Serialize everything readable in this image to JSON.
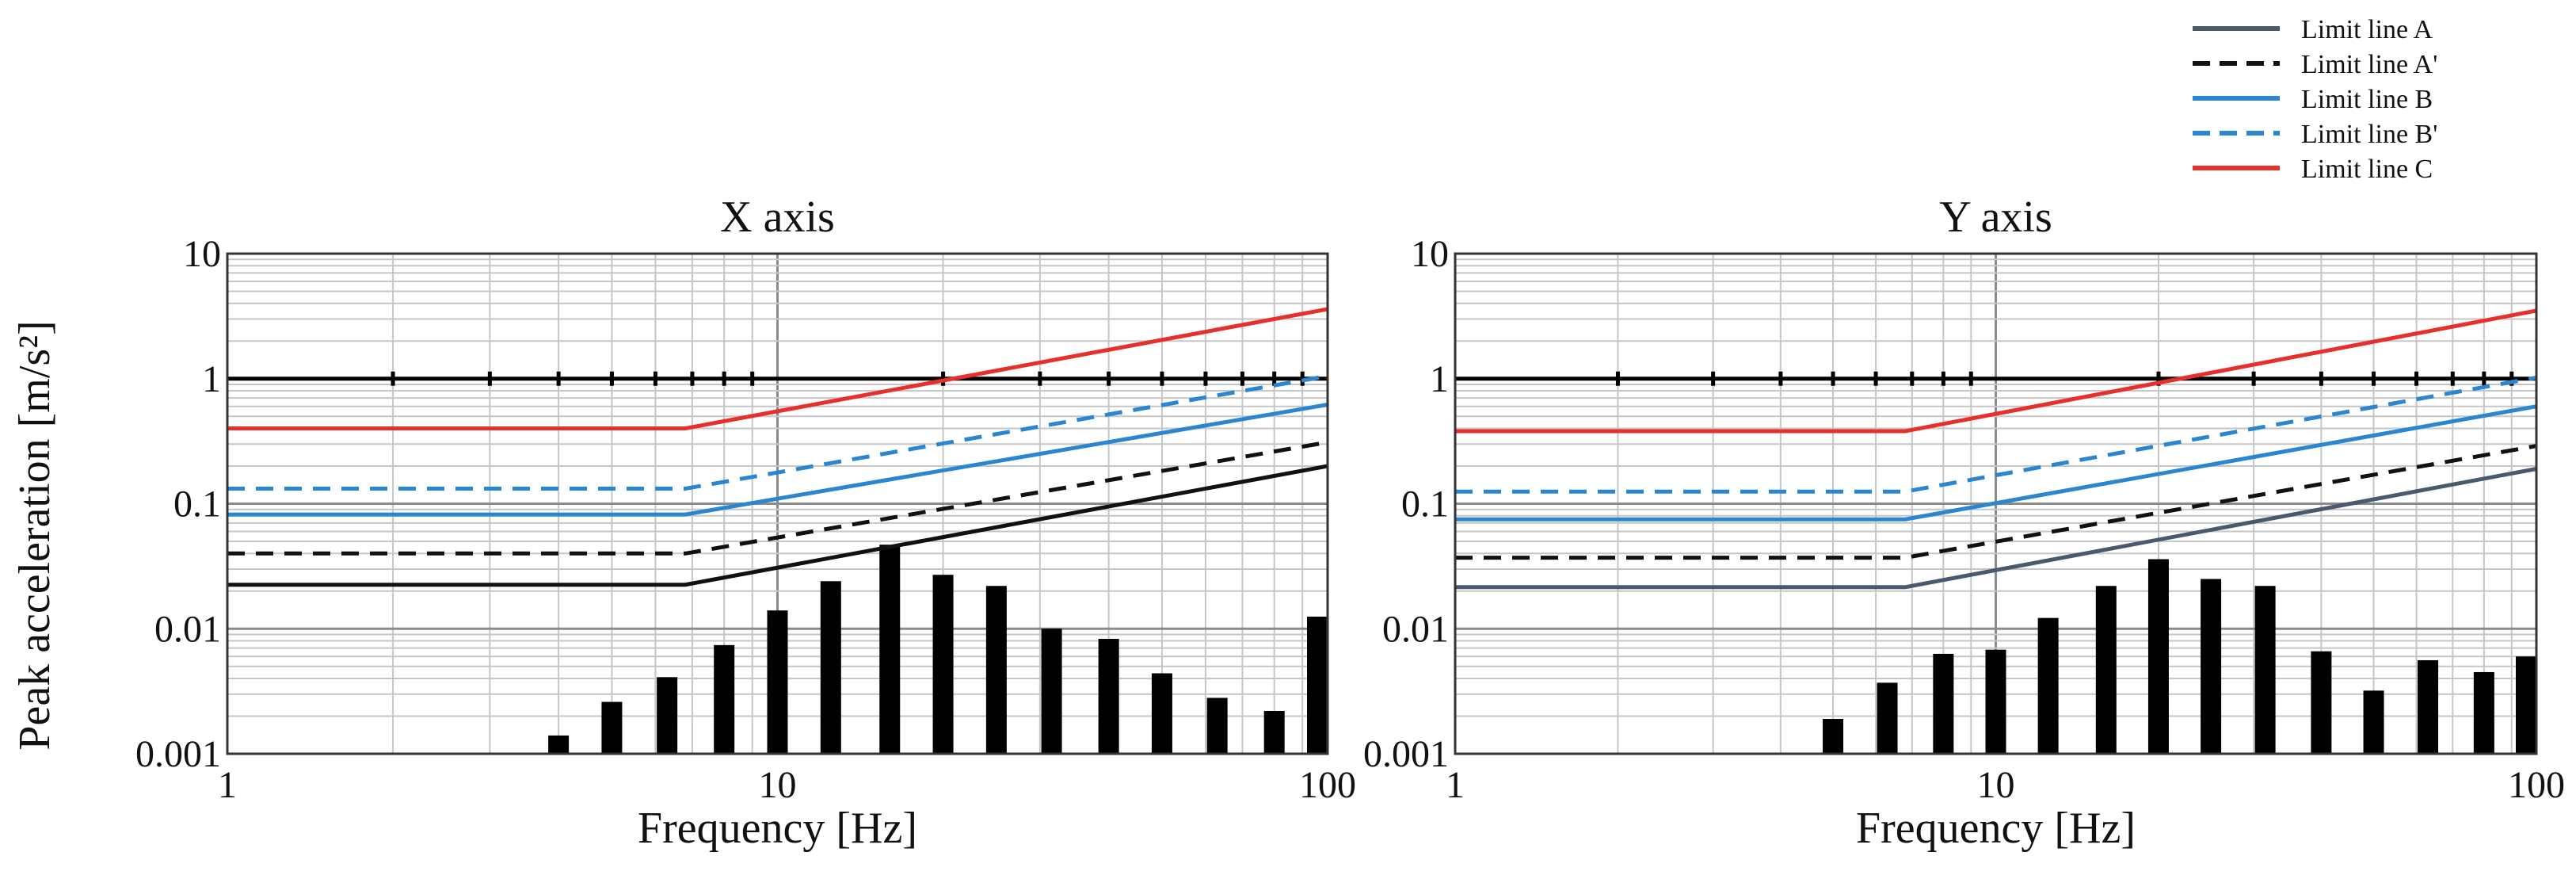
{
  "chart_data": [
    {
      "type": "bar",
      "title": "X axis",
      "xlabel": "Frequency [Hz]",
      "ylabel": "Peak acceleration [m/s²]",
      "xscale": "log",
      "yscale": "log",
      "xlim": [
        1,
        100
      ],
      "ylim": [
        0.001,
        10
      ],
      "xtick_labels": [
        {
          "value": 1,
          "label": "1"
        },
        {
          "value": 10,
          "label": "10"
        },
        {
          "value": 100,
          "label": "100"
        }
      ],
      "ytick_labels": [
        {
          "value": 0.001,
          "label": "0.001"
        },
        {
          "value": 0.01,
          "label": "0.01"
        },
        {
          "value": 0.1,
          "label": "0.1"
        },
        {
          "value": 1,
          "label": "1"
        },
        {
          "value": 10,
          "label": "10"
        }
      ],
      "grid": true,
      "bars": {
        "x": [
          4,
          5,
          6.3,
          8,
          10,
          12.5,
          16,
          20,
          25,
          31.5,
          40,
          50,
          63,
          80,
          100
        ],
        "values": [
          0.0014,
          0.0026,
          0.0041,
          0.0074,
          0.014,
          0.024,
          0.047,
          0.027,
          0.022,
          0.01,
          0.0083,
          0.0044,
          0.0028,
          0.0022,
          0.0125
        ],
        "color": "#000000"
      },
      "limit_lines": [
        {
          "key": "A",
          "points": [
            [
              1,
              0.0225
            ],
            [
              6.8,
              0.0225
            ],
            [
              100,
              0.2
            ]
          ]
        },
        {
          "key": "A'",
          "points": [
            [
              1,
              0.04
            ],
            [
              6.8,
              0.04
            ],
            [
              100,
              0.31
            ]
          ]
        },
        {
          "key": "B",
          "points": [
            [
              1,
              0.082
            ],
            [
              6.8,
              0.082
            ],
            [
              100,
              0.62
            ]
          ]
        },
        {
          "key": "B'",
          "points": [
            [
              1,
              0.132
            ],
            [
              6.8,
              0.132
            ],
            [
              100,
              1.05
            ]
          ]
        },
        {
          "key": "C",
          "points": [
            [
              1,
              0.4
            ],
            [
              6.8,
              0.4
            ],
            [
              100,
              3.6
            ]
          ]
        }
      ],
      "reference_line": {
        "y": 1,
        "tick_x": [
          2,
          3,
          4,
          5,
          6,
          7,
          8,
          9,
          20,
          30,
          40,
          50,
          60,
          70,
          80,
          90
        ],
        "color": "#000000"
      }
    },
    {
      "type": "bar",
      "title": "Y axis",
      "xlabel": "Frequency [Hz]",
      "ylabel": "",
      "xscale": "log",
      "yscale": "log",
      "xlim": [
        1,
        100
      ],
      "ylim": [
        0.001,
        10
      ],
      "xtick_labels": [
        {
          "value": 1,
          "label": "1"
        },
        {
          "value": 10,
          "label": "10"
        },
        {
          "value": 100,
          "label": "100"
        }
      ],
      "ytick_labels": [
        {
          "value": 0.001,
          "label": "0.001"
        },
        {
          "value": 0.01,
          "label": "0.01"
        },
        {
          "value": 0.1,
          "label": "0.1"
        },
        {
          "value": 1,
          "label": "1"
        },
        {
          "value": 10,
          "label": "10"
        }
      ],
      "grid": true,
      "bars": {
        "x": [
          4,
          5,
          6.3,
          8,
          10,
          12.5,
          16,
          20,
          25,
          31.5,
          40,
          50,
          63,
          80,
          100
        ],
        "values": [
          0.00101,
          0.0019,
          0.0037,
          0.0063,
          0.0068,
          0.0122,
          0.022,
          0.036,
          0.025,
          0.022,
          0.0066,
          0.0032,
          0.0056,
          0.0045,
          0.006
        ],
        "color": "#000000"
      },
      "limit_lines": [
        {
          "key": "A",
          "points": [
            [
              1,
              0.0215
            ],
            [
              6.8,
              0.0215
            ],
            [
              100,
              0.19
            ]
          ]
        },
        {
          "key": "A'",
          "points": [
            [
              1,
              0.037
            ],
            [
              6.8,
              0.037
            ],
            [
              100,
              0.29
            ]
          ]
        },
        {
          "key": "B",
          "points": [
            [
              1,
              0.075
            ],
            [
              6.8,
              0.075
            ],
            [
              100,
              0.6
            ]
          ]
        },
        {
          "key": "B'",
          "points": [
            [
              1,
              0.125
            ],
            [
              6.8,
              0.125
            ],
            [
              100,
              1.02
            ]
          ]
        },
        {
          "key": "C",
          "points": [
            [
              1,
              0.38
            ],
            [
              6.8,
              0.38
            ],
            [
              100,
              3.5
            ]
          ]
        }
      ],
      "reference_line": {
        "y": 1,
        "tick_x": [
          2,
          3,
          4,
          5,
          6,
          7,
          8,
          9,
          20,
          30,
          40,
          50,
          60,
          70,
          80,
          90
        ],
        "color": "#000000"
      }
    }
  ],
  "legend": {
    "placement": "top-right",
    "entries": [
      {
        "key": "A",
        "label": "Limit line A",
        "color": "#4a5a6e",
        "dashed": false
      },
      {
        "key": "A'",
        "label": "Limit line A'",
        "color": "#111111",
        "dashed": true
      },
      {
        "key": "B",
        "label": "Limit line B",
        "color": "#2a86d0",
        "dashed": false
      },
      {
        "key": "B'",
        "label": "Limit line B'",
        "color": "#2a86d0",
        "dashed": true
      },
      {
        "key": "C",
        "label": "Limit line C",
        "color": "#e8302a",
        "dashed": false
      }
    ]
  },
  "colors": {
    "grid_minor": "#c6c6c6",
    "grid_major": "#8a8a8a",
    "axis": "#333333",
    "line_A_x_panel": "#111111"
  }
}
